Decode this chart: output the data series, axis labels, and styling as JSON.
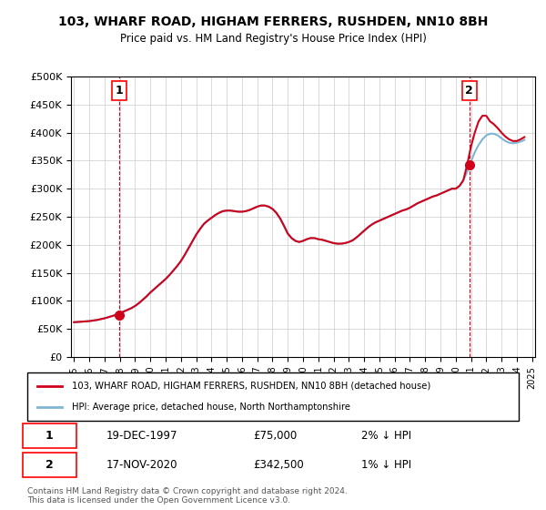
{
  "title": "103, WHARF ROAD, HIGHAM FERRERS, RUSHDEN, NN10 8BH",
  "subtitle": "Price paid vs. HM Land Registry's House Price Index (HPI)",
  "xlabel": "",
  "ylabel": "",
  "ylim": [
    0,
    500000
  ],
  "yticks": [
    0,
    50000,
    100000,
    150000,
    200000,
    250000,
    300000,
    350000,
    400000,
    450000,
    500000
  ],
  "ytick_labels": [
    "£0",
    "£50K",
    "£100K",
    "£150K",
    "£200K",
    "£250K",
    "£300K",
    "£350K",
    "£400K",
    "£450K",
    "£500K"
  ],
  "sale1": {
    "date_num": 1997.97,
    "price": 75000,
    "label": "1",
    "date_str": "19-DEC-1997",
    "price_str": "£75,000",
    "hpi_str": "2% ↓ HPI"
  },
  "sale2": {
    "date_num": 2020.89,
    "price": 342500,
    "label": "2",
    "date_str": "17-NOV-2020",
    "price_str": "£342,500",
    "hpi_str": "1% ↓ HPI"
  },
  "line_color_red": "#d0021b",
  "line_color_blue": "#7eb6d4",
  "dashed_color": "#d0021b",
  "legend_label_red": "103, WHARF ROAD, HIGHAM FERRERS, RUSHDEN, NN10 8BH (detached house)",
  "legend_label_blue": "HPI: Average price, detached house, North Northamptonshire",
  "footer": "Contains HM Land Registry data © Crown copyright and database right 2024.\nThis data is licensed under the Open Government Licence v3.0.",
  "background_color": "#ffffff",
  "plot_bg_color": "#ffffff",
  "grid_color": "#cccccc",
  "hpi_data": {
    "years": [
      1995.0,
      1995.25,
      1995.5,
      1995.75,
      1996.0,
      1996.25,
      1996.5,
      1996.75,
      1997.0,
      1997.25,
      1997.5,
      1997.75,
      1998.0,
      1998.25,
      1998.5,
      1998.75,
      1999.0,
      1999.25,
      1999.5,
      1999.75,
      2000.0,
      2000.25,
      2000.5,
      2000.75,
      2001.0,
      2001.25,
      2001.5,
      2001.75,
      2002.0,
      2002.25,
      2002.5,
      2002.75,
      2003.0,
      2003.25,
      2003.5,
      2003.75,
      2004.0,
      2004.25,
      2004.5,
      2004.75,
      2005.0,
      2005.25,
      2005.5,
      2005.75,
      2006.0,
      2006.25,
      2006.5,
      2006.75,
      2007.0,
      2007.25,
      2007.5,
      2007.75,
      2008.0,
      2008.25,
      2008.5,
      2008.75,
      2009.0,
      2009.25,
      2009.5,
      2009.75,
      2010.0,
      2010.25,
      2010.5,
      2010.75,
      2011.0,
      2011.25,
      2011.5,
      2011.75,
      2012.0,
      2012.25,
      2012.5,
      2012.75,
      2013.0,
      2013.25,
      2013.5,
      2013.75,
      2014.0,
      2014.25,
      2014.5,
      2014.75,
      2015.0,
      2015.25,
      2015.5,
      2015.75,
      2016.0,
      2016.25,
      2016.5,
      2016.75,
      2017.0,
      2017.25,
      2017.5,
      2017.75,
      2018.0,
      2018.25,
      2018.5,
      2018.75,
      2019.0,
      2019.25,
      2019.5,
      2019.75,
      2020.0,
      2020.25,
      2020.5,
      2020.75,
      2021.0,
      2021.25,
      2021.5,
      2021.75,
      2022.0,
      2022.25,
      2022.5,
      2022.75,
      2023.0,
      2023.25,
      2023.5,
      2023.75,
      2024.0,
      2024.25,
      2024.5
    ],
    "values": [
      62000,
      62500,
      63000,
      63500,
      64000,
      65000,
      66000,
      67500,
      69000,
      71000,
      73000,
      75500,
      78000,
      81000,
      84000,
      87000,
      91000,
      96000,
      102000,
      108000,
      115000,
      121000,
      127000,
      133000,
      139000,
      146000,
      154000,
      162000,
      171000,
      182000,
      194000,
      206000,
      218000,
      228000,
      237000,
      243000,
      248000,
      253000,
      257000,
      260000,
      261000,
      261000,
      260000,
      259000,
      259000,
      260000,
      262000,
      265000,
      268000,
      270000,
      270000,
      268000,
      264000,
      257000,
      247000,
      234000,
      220000,
      212000,
      207000,
      205000,
      207000,
      210000,
      212000,
      212000,
      210000,
      209000,
      207000,
      205000,
      203000,
      202000,
      202000,
      203000,
      205000,
      208000,
      213000,
      219000,
      225000,
      231000,
      236000,
      240000,
      243000,
      246000,
      249000,
      252000,
      255000,
      258000,
      261000,
      263000,
      266000,
      270000,
      274000,
      277000,
      280000,
      283000,
      286000,
      288000,
      291000,
      294000,
      297000,
      300000,
      300000,
      305000,
      315000,
      330000,
      348000,
      365000,
      378000,
      388000,
      395000,
      398000,
      398000,
      395000,
      390000,
      385000,
      382000,
      381000,
      382000,
      384000,
      387000
    ]
  },
  "price_data": {
    "years": [
      1995.0,
      1995.25,
      1995.5,
      1995.75,
      1996.0,
      1996.25,
      1996.5,
      1996.75,
      1997.0,
      1997.25,
      1997.5,
      1997.75,
      1998.0,
      1998.25,
      1998.5,
      1998.75,
      1999.0,
      1999.25,
      1999.5,
      1999.75,
      2000.0,
      2000.25,
      2000.5,
      2000.75,
      2001.0,
      2001.25,
      2001.5,
      2001.75,
      2002.0,
      2002.25,
      2002.5,
      2002.75,
      2003.0,
      2003.25,
      2003.5,
      2003.75,
      2004.0,
      2004.25,
      2004.5,
      2004.75,
      2005.0,
      2005.25,
      2005.5,
      2005.75,
      2006.0,
      2006.25,
      2006.5,
      2006.75,
      2007.0,
      2007.25,
      2007.5,
      2007.75,
      2008.0,
      2008.25,
      2008.5,
      2008.75,
      2009.0,
      2009.25,
      2009.5,
      2009.75,
      2010.0,
      2010.25,
      2010.5,
      2010.75,
      2011.0,
      2011.25,
      2011.5,
      2011.75,
      2012.0,
      2012.25,
      2012.5,
      2012.75,
      2013.0,
      2013.25,
      2013.5,
      2013.75,
      2014.0,
      2014.25,
      2014.5,
      2014.75,
      2015.0,
      2015.25,
      2015.5,
      2015.75,
      2016.0,
      2016.25,
      2016.5,
      2016.75,
      2017.0,
      2017.25,
      2017.5,
      2017.75,
      2018.0,
      2018.25,
      2018.5,
      2018.75,
      2019.0,
      2019.25,
      2019.5,
      2019.75,
      2020.0,
      2020.25,
      2020.5,
      2020.75,
      2021.0,
      2021.25,
      2021.5,
      2021.75,
      2022.0,
      2022.25,
      2022.5,
      2022.75,
      2023.0,
      2023.25,
      2023.5,
      2023.75,
      2024.0,
      2024.25,
      2024.5
    ],
    "values": [
      62000,
      62500,
      63000,
      63500,
      64000,
      65000,
      66000,
      67500,
      69000,
      71000,
      73000,
      75000,
      78000,
      81000,
      84000,
      87000,
      91000,
      96000,
      102000,
      108000,
      115000,
      121000,
      127000,
      133000,
      139000,
      146000,
      154000,
      162000,
      171000,
      182000,
      194000,
      206000,
      218000,
      228000,
      237000,
      243000,
      248000,
      253000,
      257000,
      260000,
      261000,
      261000,
      260000,
      259000,
      259000,
      260000,
      262000,
      265000,
      268000,
      270000,
      270000,
      268000,
      264000,
      257000,
      247000,
      234000,
      220000,
      212000,
      207000,
      205000,
      207000,
      210000,
      212000,
      212000,
      210000,
      209000,
      207000,
      205000,
      203000,
      202000,
      202000,
      203000,
      205000,
      208000,
      213000,
      219000,
      225000,
      231000,
      236000,
      240000,
      243000,
      246000,
      249000,
      252000,
      255000,
      258000,
      261000,
      263000,
      266000,
      270000,
      274000,
      277000,
      280000,
      283000,
      286000,
      288000,
      291000,
      294000,
      297000,
      300000,
      300000,
      305000,
      315000,
      342500,
      375000,
      400000,
      420000,
      430000,
      430000,
      420000,
      415000,
      408000,
      400000,
      393000,
      388000,
      385000,
      385000,
      388000,
      392000
    ]
  }
}
